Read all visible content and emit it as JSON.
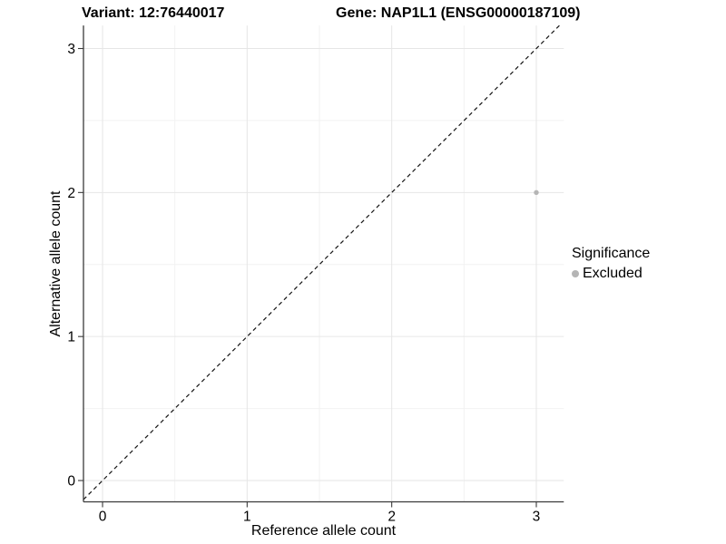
{
  "titles": {
    "variant": "Variant: 12:76440017",
    "gene": "Gene: NAP1L1 (ENSG00000187109)"
  },
  "chart_data": {
    "type": "scatter",
    "xlabel": "Reference allele count",
    "ylabel": "Alternative allele count",
    "x_ticks": [
      0,
      1,
      2,
      3
    ],
    "y_ticks": [
      0,
      1,
      2,
      3
    ],
    "xlim": [
      -0.132,
      3.19
    ],
    "ylim": [
      -0.148,
      3.16
    ],
    "grid": {
      "major": true,
      "minor": true
    },
    "identity_line": {
      "style": "dashed",
      "from": -0.132,
      "to": 3.16
    },
    "series": [
      {
        "name": "Excluded",
        "color": "#b5b5b5",
        "points": [
          [
            3,
            2
          ]
        ]
      }
    ],
    "legend": {
      "title": "Significance",
      "position": "right",
      "entries": [
        {
          "label": "Excluded",
          "color": "#b5b5b5"
        }
      ]
    }
  },
  "colors": {
    "grid_major": "#e6e6e6",
    "grid_minor": "#f2f2f2",
    "axis": "#3a3a3a",
    "dashed_line": "#141414",
    "point": "#b5b5b5"
  }
}
